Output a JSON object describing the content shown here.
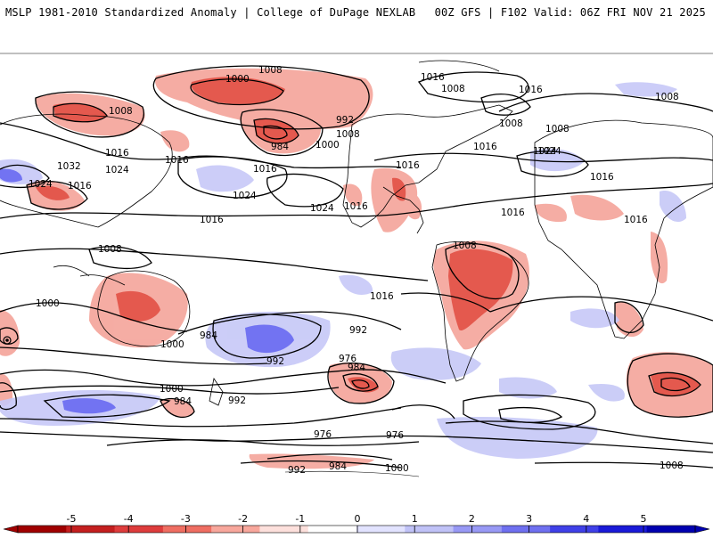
{
  "header": {
    "title_left": "MSLP 1981-2010 Standardized Anomaly | College of DuPage NEXLAB",
    "title_right": "00Z GFS | F102 Valid: 06Z FRI NOV 21 2025"
  },
  "map": {
    "projection": "global cylindrical",
    "isobar_color": "#000000",
    "coastline_color": "#000000",
    "isobar_labels": [
      "1008",
      "1000",
      "1008",
      "1016",
      "1016",
      "992",
      "1008",
      "984",
      "1000",
      "1008",
      "1016",
      "1016",
      "1016",
      "1024",
      "1024",
      "1032",
      "1024",
      "1016",
      "1024",
      "1016",
      "1016",
      "1024",
      "1016",
      "1008",
      "1008",
      "1008",
      "1016",
      "1016",
      "1016",
      "1008",
      "1024",
      "1016",
      "1016",
      "1008",
      "1000",
      "984",
      "992",
      "992",
      "976",
      "984",
      "1000",
      "1000",
      "984",
      "992",
      "976",
      "992",
      "1000",
      "984",
      "976",
      "1008"
    ],
    "negative_color": "#e04a3f",
    "positive_color": "#5b5cf0"
  },
  "colorbar": {
    "tick_labels": [
      "-5",
      "-4",
      "-3",
      "-2",
      "-1",
      "0",
      "1",
      "2",
      "3",
      "4",
      "5"
    ],
    "colors": [
      "#a00000",
      "#c41f1f",
      "#de3c3c",
      "#ef6e62",
      "#f8a79c",
      "#fde0dc",
      "#ffffff",
      "#e2e3ff",
      "#c0c2f7",
      "#9899f5",
      "#6f70f0",
      "#3f40e8",
      "#1a1ad8",
      "#0000b0"
    ]
  }
}
